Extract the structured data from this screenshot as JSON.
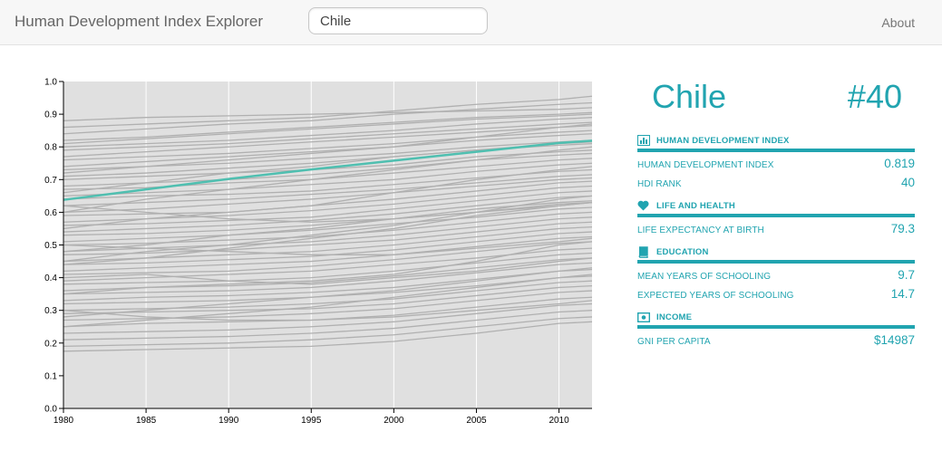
{
  "navbar": {
    "brand": "Human Development Index Explorer",
    "search_value": "Chile",
    "about_label": "About"
  },
  "profile": {
    "country": "Chile",
    "rank_badge": "#40",
    "sections": [
      {
        "title": "HUMAN DEVELOPMENT INDEX",
        "icon": "bar-chart-icon",
        "rows": [
          {
            "label": "HUMAN DEVELOPMENT INDEX",
            "value": "0.819"
          },
          {
            "label": "HDI RANK",
            "value": "40"
          }
        ]
      },
      {
        "title": "LIFE AND HEALTH",
        "icon": "heart-icon",
        "rows": [
          {
            "label": "LIFE EXPECTANCY AT BIRTH",
            "value": "79.3"
          }
        ]
      },
      {
        "title": "EDUCATION",
        "icon": "book-icon",
        "rows": [
          {
            "label": "MEAN YEARS OF SCHOOLING",
            "value": "9.7"
          },
          {
            "label": "EXPECTED YEARS OF SCHOOLING",
            "value": "14.7"
          }
        ]
      },
      {
        "title": "INCOME",
        "icon": "money-icon",
        "rows": [
          {
            "label": "GNI PER CAPITA",
            "value": "$14987"
          }
        ]
      }
    ]
  },
  "colors": {
    "accent": "#21a4b0",
    "highlight_line": "#4fbfb0",
    "background_lines": "#b0b0b0",
    "plot_bg": "#e0e0e0"
  },
  "chart_data": {
    "type": "line",
    "xlim": [
      1980,
      2012
    ],
    "ylim": [
      0.0,
      1.0
    ],
    "x_ticks": [
      "1980",
      "1985",
      "1990",
      "1995",
      "2000",
      "2005",
      "2010"
    ],
    "y_ticks": [
      "0.0",
      "0.1",
      "0.2",
      "0.3",
      "0.4",
      "0.5",
      "0.6",
      "0.7",
      "0.8",
      "0.9",
      "1.0"
    ],
    "grid": "vertical",
    "highlight": {
      "name": "Chile",
      "x": [
        1980,
        1985,
        1990,
        1995,
        2000,
        2005,
        2010,
        2012
      ],
      "y": [
        0.638,
        0.67,
        0.702,
        0.731,
        0.758,
        0.785,
        0.812,
        0.819
      ]
    },
    "background_series": [
      [
        0.86,
        0.87,
        0.88,
        0.89,
        0.91,
        0.93,
        0.945,
        0.955
      ],
      [
        0.84,
        0.855,
        0.87,
        0.88,
        0.9,
        0.915,
        0.93,
        0.935
      ],
      [
        0.82,
        0.83,
        0.845,
        0.86,
        0.875,
        0.89,
        0.9,
        0.905
      ],
      [
        0.8,
        0.81,
        0.82,
        0.835,
        0.85,
        0.87,
        0.885,
        0.89
      ],
      [
        0.79,
        0.8,
        0.81,
        0.825,
        0.84,
        0.855,
        0.87,
        0.875
      ],
      [
        0.77,
        0.785,
        0.8,
        0.815,
        0.83,
        0.845,
        0.86,
        0.865
      ],
      [
        0.76,
        0.77,
        0.78,
        0.795,
        0.81,
        0.83,
        0.845,
        0.85
      ],
      [
        0.74,
        0.755,
        0.77,
        0.785,
        0.8,
        0.82,
        0.835,
        0.84
      ],
      [
        0.73,
        0.74,
        0.75,
        0.765,
        0.78,
        0.8,
        0.815,
        0.82
      ],
      [
        0.71,
        0.72,
        0.735,
        0.75,
        0.77,
        0.79,
        0.805,
        0.81
      ],
      [
        0.7,
        0.71,
        0.72,
        0.73,
        0.745,
        0.77,
        0.785,
        0.79
      ],
      [
        0.68,
        0.69,
        0.7,
        0.715,
        0.735,
        0.76,
        0.775,
        0.78
      ],
      [
        0.67,
        0.675,
        0.69,
        0.7,
        0.72,
        0.74,
        0.76,
        0.765
      ],
      [
        0.65,
        0.66,
        0.67,
        0.685,
        0.7,
        0.725,
        0.745,
        0.75
      ],
      [
        0.64,
        0.65,
        0.655,
        0.665,
        0.685,
        0.705,
        0.725,
        0.73
      ],
      [
        0.62,
        0.63,
        0.64,
        0.655,
        0.67,
        0.69,
        0.71,
        0.715
      ],
      [
        0.6,
        0.61,
        0.625,
        0.64,
        0.66,
        0.68,
        0.7,
        0.705
      ],
      [
        0.59,
        0.595,
        0.6,
        0.62,
        0.64,
        0.665,
        0.69,
        0.695
      ],
      [
        0.57,
        0.58,
        0.59,
        0.605,
        0.625,
        0.65,
        0.675,
        0.68
      ],
      [
        0.56,
        0.565,
        0.575,
        0.585,
        0.61,
        0.635,
        0.66,
        0.665
      ],
      [
        0.54,
        0.55,
        0.56,
        0.575,
        0.595,
        0.62,
        0.645,
        0.65
      ],
      [
        0.53,
        0.535,
        0.545,
        0.56,
        0.58,
        0.6,
        0.625,
        0.63
      ],
      [
        0.51,
        0.52,
        0.53,
        0.545,
        0.565,
        0.585,
        0.61,
        0.615
      ],
      [
        0.5,
        0.505,
        0.515,
        0.525,
        0.545,
        0.57,
        0.595,
        0.6
      ],
      [
        0.48,
        0.49,
        0.5,
        0.51,
        0.53,
        0.555,
        0.58,
        0.585
      ],
      [
        0.47,
        0.475,
        0.485,
        0.5,
        0.515,
        0.54,
        0.565,
        0.57
      ],
      [
        0.45,
        0.46,
        0.47,
        0.48,
        0.5,
        0.525,
        0.55,
        0.555
      ],
      [
        0.44,
        0.445,
        0.455,
        0.465,
        0.485,
        0.51,
        0.535,
        0.54
      ],
      [
        0.42,
        0.43,
        0.44,
        0.45,
        0.47,
        0.495,
        0.52,
        0.525
      ],
      [
        0.41,
        0.415,
        0.42,
        0.435,
        0.455,
        0.48,
        0.505,
        0.51
      ],
      [
        0.39,
        0.4,
        0.41,
        0.42,
        0.44,
        0.46,
        0.485,
        0.49
      ],
      [
        0.38,
        0.385,
        0.39,
        0.4,
        0.42,
        0.445,
        0.47,
        0.475
      ],
      [
        0.36,
        0.37,
        0.375,
        0.385,
        0.405,
        0.43,
        0.455,
        0.46
      ],
      [
        0.35,
        0.355,
        0.36,
        0.37,
        0.39,
        0.415,
        0.44,
        0.445
      ],
      [
        0.33,
        0.34,
        0.345,
        0.355,
        0.37,
        0.395,
        0.42,
        0.425
      ],
      [
        0.32,
        0.325,
        0.33,
        0.34,
        0.355,
        0.375,
        0.4,
        0.405
      ],
      [
        0.3,
        0.305,
        0.31,
        0.32,
        0.335,
        0.36,
        0.385,
        0.39
      ],
      [
        0.29,
        0.295,
        0.3,
        0.305,
        0.32,
        0.345,
        0.37,
        0.375
      ],
      [
        0.27,
        0.275,
        0.28,
        0.29,
        0.305,
        0.33,
        0.355,
        0.36
      ],
      [
        0.25,
        0.26,
        0.265,
        0.27,
        0.285,
        0.31,
        0.335,
        0.34
      ],
      [
        0.23,
        0.235,
        0.24,
        0.25,
        0.265,
        0.29,
        0.315,
        0.32
      ],
      [
        0.21,
        0.215,
        0.22,
        0.23,
        0.245,
        0.27,
        0.295,
        0.3
      ],
      [
        0.19,
        0.195,
        0.2,
        0.21,
        0.225,
        0.25,
        0.275,
        0.28
      ],
      [
        0.175,
        0.18,
        0.185,
        0.19,
        0.205,
        0.23,
        0.26,
        0.265
      ],
      [
        0.28,
        0.3,
        0.32,
        0.34,
        0.36,
        0.39,
        0.42,
        0.43
      ],
      [
        0.45,
        0.48,
        0.5,
        0.53,
        0.56,
        0.6,
        0.64,
        0.65
      ],
      [
        0.6,
        0.64,
        0.67,
        0.7,
        0.73,
        0.76,
        0.79,
        0.8
      ],
      [
        0.55,
        0.58,
        0.6,
        0.62,
        0.66,
        0.7,
        0.73,
        0.74
      ],
      [
        0.35,
        0.37,
        0.38,
        0.39,
        0.41,
        0.45,
        0.5,
        0.51
      ],
      [
        0.5,
        0.49,
        0.48,
        0.47,
        0.47,
        0.49,
        0.51,
        0.52
      ],
      [
        0.62,
        0.6,
        0.58,
        0.57,
        0.58,
        0.6,
        0.62,
        0.63
      ],
      [
        0.4,
        0.41,
        0.39,
        0.38,
        0.4,
        0.42,
        0.45,
        0.46
      ],
      [
        0.72,
        0.74,
        0.76,
        0.78,
        0.8,
        0.83,
        0.86,
        0.87
      ],
      [
        0.66,
        0.69,
        0.72,
        0.74,
        0.77,
        0.79,
        0.81,
        0.815
      ],
      [
        0.3,
        0.28,
        0.27,
        0.27,
        0.28,
        0.3,
        0.32,
        0.33
      ],
      [
        0.88,
        0.89,
        0.895,
        0.9,
        0.905,
        0.91,
        0.915,
        0.92
      ],
      [
        0.81,
        0.825,
        0.84,
        0.855,
        0.87,
        0.885,
        0.895,
        0.9
      ],
      [
        0.25,
        0.27,
        0.29,
        0.31,
        0.34,
        0.37,
        0.4,
        0.41
      ],
      [
        0.48,
        0.5,
        0.53,
        0.55,
        0.58,
        0.61,
        0.63,
        0.635
      ],
      [
        0.44,
        0.46,
        0.49,
        0.52,
        0.55,
        0.59,
        0.62,
        0.63
      ]
    ],
    "x": [
      1980,
      1985,
      1990,
      1995,
      2000,
      2005,
      2010,
      2012
    ]
  }
}
